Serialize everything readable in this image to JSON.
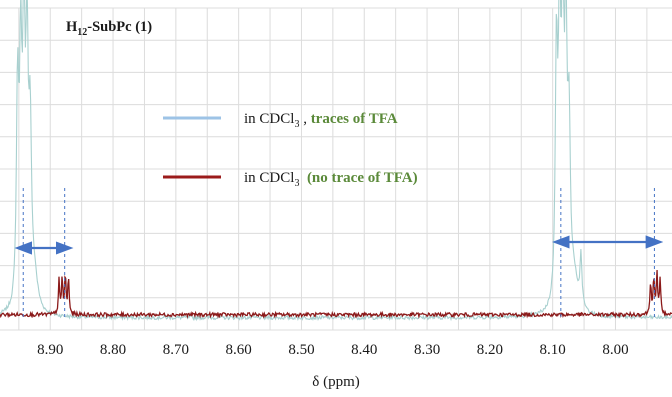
{
  "chart_data": {
    "type": "line",
    "title": "",
    "xlabel": "δ (ppm)",
    "ylabel": "",
    "x_reversed": true,
    "xlim": [
      8.98,
      7.91
    ],
    "ylim": [
      -0.05,
      1.0
    ],
    "x_ticks": [
      8.9,
      8.8,
      8.7,
      8.6,
      8.5,
      8.4,
      8.3,
      8.2,
      8.1,
      8.0
    ],
    "x_tick_labels": [
      "8.90",
      "8.80",
      "8.70",
      "8.60",
      "8.50",
      "8.40",
      "8.30",
      "8.20",
      "8.10",
      "8.00"
    ],
    "grid": true,
    "compound_label": {
      "main": "H",
      "subscript": "12",
      "rest": "-SubPc (1)"
    },
    "legend": {
      "placement": "center",
      "entries": [
        {
          "prefix": "in CDCl",
          "subscript": "3",
          "sep": " , ",
          "note": "traces of TFA",
          "color": "#9dc3e6"
        },
        {
          "prefix": "in CDCl",
          "subscript": "3",
          "sep": "  ",
          "note": "(no trace of TFA)",
          "color": "#9b1b1b"
        }
      ]
    },
    "note_color": "#5b8a3a",
    "series": [
      {
        "color": "#a8d0cf",
        "baseline": -0.01,
        "peaks": [
          {
            "pos": 8.952,
            "height": 0.7,
            "width": 0.0022
          },
          {
            "pos": 8.947,
            "height": 0.76,
            "width": 0.0022
          },
          {
            "pos": 8.942,
            "height": 0.86,
            "width": 0.0022
          },
          {
            "pos": 8.937,
            "height": 0.8,
            "width": 0.0022
          },
          {
            "pos": 8.932,
            "height": 0.55,
            "width": 0.0025
          },
          {
            "pos": 8.925,
            "height": 0.1,
            "width": 0.006
          },
          {
            "pos": 8.094,
            "height": 0.8,
            "width": 0.0022
          },
          {
            "pos": 8.089,
            "height": 0.88,
            "width": 0.0022
          },
          {
            "pos": 8.084,
            "height": 0.93,
            "width": 0.0022
          },
          {
            "pos": 8.079,
            "height": 0.84,
            "width": 0.0022
          },
          {
            "pos": 8.074,
            "height": 0.55,
            "width": 0.0025
          },
          {
            "pos": 8.066,
            "height": 0.1,
            "width": 0.006
          },
          {
            "pos": 8.055,
            "height": 0.17,
            "width": 0.002
          }
        ]
      },
      {
        "color": "#8b1a1a",
        "baseline": 0.0,
        "peaks": [
          {
            "pos": 8.886,
            "height": 0.11,
            "width": 0.0012
          },
          {
            "pos": 8.881,
            "height": 0.12,
            "width": 0.0012
          },
          {
            "pos": 8.876,
            "height": 0.13,
            "width": 0.0012
          },
          {
            "pos": 8.871,
            "height": 0.12,
            "width": 0.0012
          },
          {
            "pos": 7.944,
            "height": 0.11,
            "width": 0.0012
          },
          {
            "pos": 7.939,
            "height": 0.12,
            "width": 0.0012
          },
          {
            "pos": 7.934,
            "height": 0.13,
            "width": 0.0012
          },
          {
            "pos": 7.929,
            "height": 0.12,
            "width": 0.0012
          }
        ]
      }
    ],
    "annotations": [
      {
        "type": "shift-arrow",
        "from_ppm": 8.943,
        "to_ppm": 8.877,
        "color": "#4472c4"
      },
      {
        "type": "shift-arrow",
        "from_ppm": 8.087,
        "to_ppm": 7.938,
        "color": "#4472c4"
      }
    ]
  }
}
